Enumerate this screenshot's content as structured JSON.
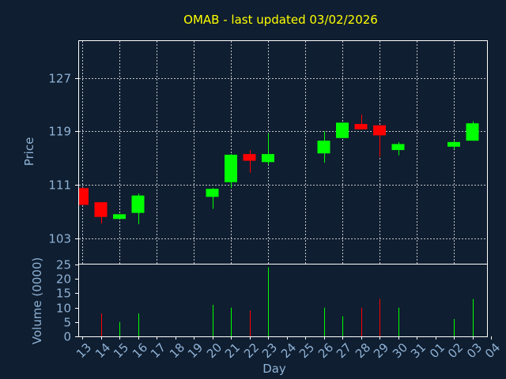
{
  "chart_data": {
    "type": "candlestick",
    "title": "OMAB - last updated 03/02/2026",
    "xlabel": "Day",
    "x_ticks": [
      "13",
      "14",
      "15",
      "16",
      "17",
      "18",
      "19",
      "20",
      "21",
      "22",
      "23",
      "24",
      "25",
      "26",
      "27",
      "28",
      "29",
      "30",
      "31",
      "01",
      "02",
      "03",
      "04"
    ],
    "colors": {
      "up": "#00ff00",
      "down": "#ff0000",
      "background": "#0f1e30",
      "plot": "#ffffff",
      "title": "#ffff00",
      "text": "#8fb2d6"
    },
    "price_panel": {
      "ylabel": "Price",
      "ylim": [
        99.2,
        132.5
      ],
      "yticks": [
        103,
        111,
        119,
        127
      ]
    },
    "volume_panel": {
      "ylabel": "Volume (0000)",
      "ylim": [
        0,
        25
      ],
      "yticks": [
        0,
        5,
        10,
        15,
        20,
        25
      ]
    },
    "candles": [
      {
        "day": "13",
        "open": 110.5,
        "high": 110.6,
        "low": 108.0,
        "close": 108.0,
        "volume": 0
      },
      {
        "day": "14",
        "open": 108.4,
        "high": 108.4,
        "low": 105.2,
        "close": 106.2,
        "volume": 8
      },
      {
        "day": "15",
        "open": 105.9,
        "high": 106.6,
        "low": 105.9,
        "close": 106.6,
        "volume": 5
      },
      {
        "day": "16",
        "open": 106.8,
        "high": 109.7,
        "low": 105.1,
        "close": 109.4,
        "volume": 8
      },
      {
        "day": "20",
        "open": 109.2,
        "high": 110.5,
        "low": 107.4,
        "close": 110.4,
        "volume": 11
      },
      {
        "day": "21",
        "open": 111.4,
        "high": 115.6,
        "low": 110.5,
        "close": 115.5,
        "volume": 10
      },
      {
        "day": "22",
        "open": 115.6,
        "high": 116.2,
        "low": 112.8,
        "close": 114.6,
        "volume": 9
      },
      {
        "day": "23",
        "open": 114.4,
        "high": 118.7,
        "low": 114.0,
        "close": 115.6,
        "volume": 24
      },
      {
        "day": "26",
        "open": 115.7,
        "high": 119.0,
        "low": 114.3,
        "close": 117.6,
        "volume": 10
      },
      {
        "day": "27",
        "open": 118.0,
        "high": 120.3,
        "low": 118.0,
        "close": 120.3,
        "volume": 7
      },
      {
        "day": "28",
        "open": 120.1,
        "high": 121.5,
        "low": 119.3,
        "close": 119.3,
        "volume": 10
      },
      {
        "day": "29",
        "open": 119.9,
        "high": 119.9,
        "low": 115.2,
        "close": 118.4,
        "volume": 13
      },
      {
        "day": "30",
        "open": 116.2,
        "high": 117.4,
        "low": 115.4,
        "close": 117.1,
        "volume": 10
      },
      {
        "day": "02",
        "open": 116.7,
        "high": 117.6,
        "low": 116.4,
        "close": 117.4,
        "volume": 6
      },
      {
        "day": "03",
        "open": 117.6,
        "high": 120.5,
        "low": 117.6,
        "close": 120.2,
        "volume": 13
      }
    ]
  }
}
